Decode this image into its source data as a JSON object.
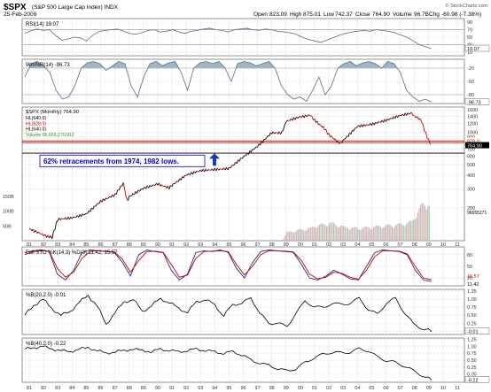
{
  "header": {
    "symbol": "$SPX",
    "name": "(S&P 500 Large Cap Index) INDX",
    "date": "25-Feb-2009",
    "quote": {
      "open_label": "Open",
      "open": "823.09",
      "high_label": "High",
      "high": "875.01",
      "low_label": "Low",
      "low": "742.37",
      "close_label": "Close",
      "close": "764.90",
      "volume_label": "Volume",
      "volume": "96.7B",
      "chg_label": "Chg",
      "chg": "-60.98 (-7.38%)"
    },
    "watermark": "© StockCharts.com"
  },
  "chart_data": [
    {
      "type": "line",
      "panel": "rsi",
      "legend": "RSI(14) 19.07",
      "ylim": [
        0,
        100
      ],
      "yticks": [
        90,
        70,
        50,
        30,
        10
      ],
      "last_label": "19.07",
      "reference_lines": [
        70,
        30
      ],
      "values": [
        60,
        67,
        72,
        68,
        70,
        55,
        42,
        45,
        50,
        48,
        40,
        55,
        65,
        68,
        70,
        72,
        66,
        60,
        58,
        62,
        68,
        70,
        64,
        66,
        70,
        64,
        60,
        66,
        68,
        72,
        74,
        70,
        68,
        64,
        70,
        72,
        74,
        70,
        68,
        72,
        70,
        66,
        64,
        62,
        58,
        50,
        44,
        40,
        36,
        42,
        48,
        55,
        60,
        64,
        66,
        68,
        66,
        70,
        68,
        66,
        62,
        56,
        50,
        40,
        30,
        24,
        19
      ]
    },
    {
      "type": "line",
      "panel": "williams",
      "legend": "Wm%R(14) -96.73",
      "ylim": [
        -100,
        0
      ],
      "yticks": [
        -20,
        -50,
        -80
      ],
      "last_label": "-96.73",
      "reference_lines": [
        -20,
        -80
      ],
      "values": [
        -40,
        -10,
        -5,
        -15,
        -30,
        -70,
        -90,
        -85,
        -60,
        -20,
        -8,
        -5,
        -10,
        -25,
        -15,
        -5,
        -10,
        -60,
        -85,
        -40,
        -10,
        -5,
        -15,
        -8,
        -5,
        -30,
        -70,
        -20,
        -8,
        -5,
        -10,
        -5,
        -20,
        -50,
        -10,
        -5,
        -8,
        -15,
        -10,
        -5,
        -20,
        -60,
        -80,
        -90,
        -85,
        -95,
        -70,
        -40,
        -80,
        -60,
        -20,
        -10,
        -5,
        -15,
        -8,
        -5,
        -10,
        -20,
        -5,
        -10,
        -30,
        -70,
        -85,
        -95,
        -90,
        -96.7
      ]
    },
    {
      "type": "line",
      "panel": "price",
      "title": "$SPX (Monthly) 764.90",
      "legend": [
        {
          "label": "HL(640.0)",
          "color": "#000000"
        },
        {
          "label": "HL(828.0)",
          "color": "#cc0000"
        },
        {
          "label": "HL(640.0)",
          "color": "#000000"
        },
        {
          "label": "Volume 96,655,270,912",
          "color": "#229922"
        }
      ],
      "scale": "log",
      "ylim": [
        100,
        1700
      ],
      "yticks": [
        1600,
        1400,
        1200,
        1000,
        900,
        800,
        700,
        600,
        500,
        400,
        300,
        200
      ],
      "price_labels": [
        "828.0",
        "764.90"
      ],
      "horizontal_levels": [
        {
          "value": 828,
          "color": "#cc0000"
        },
        {
          "value": 800,
          "color": "#cc0000"
        },
        {
          "value": 640,
          "color": "#000000"
        }
      ],
      "annotation": "62% retracements from 1974, 1982 lows.",
      "volume_yticks": [
        "150B",
        "100B",
        "50B"
      ],
      "volume_last_label": "96655271",
      "x": [
        1981,
        1982,
        1982.6,
        1983,
        1984,
        1985,
        1986,
        1987,
        1987.6,
        1987.85,
        1988,
        1989,
        1990,
        1990.8,
        1991,
        1992,
        1993,
        1994,
        1995,
        1996,
        1997,
        1998,
        1998.7,
        1999,
        2000,
        2000.7,
        2001,
        2001.7,
        2002,
        2002.8,
        2003,
        2004,
        2005,
        2006,
        2007,
        2007.8,
        2008,
        2008.5,
        2008.9,
        2009.1
      ],
      "values": [
        130,
        115,
        105,
        160,
        165,
        180,
        235,
        270,
        330,
        230,
        260,
        310,
        340,
        310,
        330,
        410,
        450,
        460,
        470,
        600,
        750,
        1000,
        1000,
        1270,
        1400,
        1460,
        1300,
        1100,
        950,
        800,
        840,
        1130,
        1180,
        1280,
        1420,
        1520,
        1380,
        1270,
        900,
        765
      ],
      "volume": [
        0,
        0,
        0,
        0,
        0,
        0,
        0,
        0,
        0,
        0,
        0,
        0,
        0,
        0,
        0,
        0,
        0,
        0,
        0,
        0,
        0,
        0,
        0,
        30,
        40,
        45,
        55,
        60,
        65,
        55,
        50,
        45,
        50,
        55,
        60,
        70,
        90,
        130,
        140,
        120
      ]
    },
    {
      "type": "line",
      "panel": "stochastic",
      "legend": "Full STO %K(14,3) %D(3) 11.42, 15.57",
      "ylim": [
        0,
        100
      ],
      "yticks": [
        80,
        50,
        20
      ],
      "last_labels": [
        "11.42",
        "15.57"
      ],
      "series": [
        {
          "name": "%K(14,3)",
          "color": "#000000",
          "values": [
            85,
            90,
            92,
            88,
            30,
            15,
            40,
            85,
            92,
            90,
            88,
            86,
            60,
            25,
            80,
            92,
            88,
            85,
            40,
            15,
            30,
            85,
            90,
            88,
            92,
            86,
            45,
            20,
            60,
            88,
            92,
            90,
            88,
            86,
            55,
            20,
            15,
            25,
            40,
            30,
            18,
            15,
            50,
            85,
            92,
            90,
            88,
            80,
            40,
            15,
            11
          ]
        },
        {
          "name": "%D(3)",
          "color": "#cc0000",
          "values": [
            80,
            88,
            90,
            89,
            45,
            22,
            35,
            70,
            88,
            90,
            89,
            87,
            68,
            35,
            65,
            88,
            89,
            86,
            55,
            22,
            28,
            70,
            88,
            89,
            90,
            88,
            55,
            28,
            50,
            80,
            90,
            90,
            89,
            87,
            65,
            30,
            18,
            22,
            35,
            32,
            22,
            17,
            40,
            75,
            90,
            90,
            89,
            82,
            50,
            20,
            15.6
          ]
        }
      ]
    },
    {
      "type": "line",
      "panel": "pctb_20",
      "legend": "%B(20,2.0) -0.01",
      "ylim": [
        -0.1,
        1.3
      ],
      "yticks": [
        1.25,
        1.0,
        0.75,
        0.5,
        0.25,
        0.0
      ],
      "last_label": "-0.01",
      "values": [
        0.5,
        0.8,
        1.0,
        0.7,
        0.5,
        0.6,
        0.9,
        1.1,
        0.8,
        0.2,
        0.6,
        0.9,
        1.0,
        0.6,
        0.8,
        1.0,
        0.9,
        0.7,
        0.6,
        0.9,
        1.0,
        0.8,
        0.5,
        0.8,
        0.9,
        1.0,
        0.6,
        0.2,
        0.3,
        0.1,
        0.6,
        0.9,
        0.8,
        0.7,
        0.9,
        0.8,
        0.9,
        1.0,
        0.7,
        0.5,
        0.9,
        1.0,
        0.6,
        0.2,
        0.1,
        -0.01
      ]
    },
    {
      "type": "line",
      "panel": "pctb_40",
      "legend": "%B(40,2.0) -0.22",
      "ylim": [
        -0.3,
        1.3
      ],
      "yticks": [
        1.25,
        1.0,
        0.75,
        0.5,
        0.25,
        0.0
      ],
      "last_label": "-0.22",
      "values": [
        0.9,
        0.95,
        1.0,
        0.9,
        0.85,
        0.8,
        0.9,
        0.95,
        0.85,
        0.75,
        0.8,
        0.85,
        0.9,
        0.85,
        0.8,
        0.9,
        0.85,
        0.8,
        0.85,
        0.9,
        0.85,
        0.8,
        0.75,
        0.8,
        0.7,
        0.5,
        0.4,
        0.3,
        0.2,
        0.1,
        0.2,
        0.4,
        0.6,
        0.7,
        0.8,
        0.75,
        0.8,
        0.9,
        0.85,
        0.6,
        0.5,
        0.4,
        0.3,
        0.1,
        -0.05,
        -0.22
      ]
    }
  ],
  "x_axis": {
    "tick_labels": [
      "81",
      "82",
      "83",
      "84",
      "85",
      "86",
      "87",
      "88",
      "89",
      "90",
      "91",
      "92",
      "93",
      "94",
      "95",
      "96",
      "97",
      "98",
      "99",
      "00",
      "01",
      "02",
      "03",
      "04",
      "05",
      "06",
      "07",
      "08",
      "09",
      "10",
      "11"
    ],
    "xlim": [
      1980.5,
      2011.5
    ]
  },
  "colors": {
    "indicator_fill": "#9fb7c2",
    "indicator_line": "#5d6b8a",
    "price_up": "#000000",
    "price_down": "#cc0000",
    "volume_up": "#a8c9a8",
    "volume_down": "#e0a4b8",
    "annotation_text": "#0000cc",
    "arrow": "#1a3cb0"
  }
}
